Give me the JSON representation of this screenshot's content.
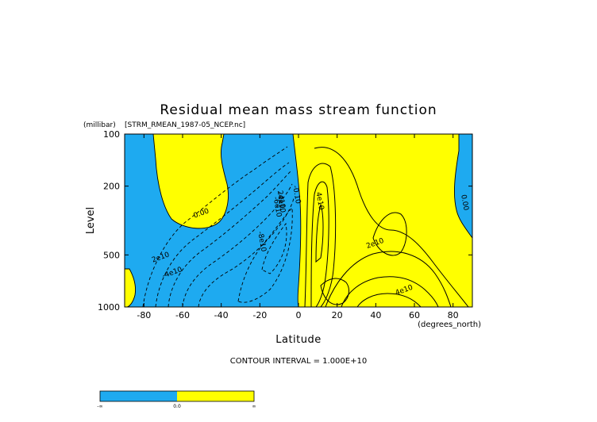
{
  "chart_data": {
    "type": "contour",
    "title": "Residual mean mass stream function",
    "source_file": "[STRM_RMEAN_1987-05_NCEP.nc]",
    "xlabel": "Latitude",
    "x_units": "(degrees_north)",
    "ylabel": "Level",
    "y_units": "(millibar)",
    "x_ticks": [
      -80,
      -60,
      -40,
      -20,
      0,
      20,
      40,
      60,
      80
    ],
    "x_tick_labels": [
      "-80",
      "-60",
      "-40",
      "-20",
      "0",
      "20",
      "40",
      "60",
      "80"
    ],
    "xlim": [
      -90,
      90
    ],
    "y_ticks": [
      100,
      200,
      500,
      1000
    ],
    "y_tick_labels": [
      "100",
      "200",
      "500",
      "1000"
    ],
    "ylim": [
      1000,
      100
    ],
    "y_scale": "log",
    "contour_interval_text": "CONTOUR INTERVAL = 1.000E+10",
    "contour_labels": [
      {
        "text": "0.00",
        "lat": -50,
        "p": 295
      },
      {
        "text": "2e10",
        "lat": -71,
        "p": 530
      },
      {
        "text": "-4e10",
        "lat": -65,
        "p": 650
      },
      {
        "text": "-6e10",
        "lat": -12,
        "p": 265
      },
      {
        "text": "2e10",
        "lat": -10,
        "p": 240
      },
      {
        "text": "-4e10",
        "lat": -10,
        "p": 250
      },
      {
        "text": "-8e10",
        "lat": -20,
        "p": 420
      },
      {
        "text": "-0.10",
        "lat": -2,
        "p": 225
      },
      {
        "text": "4e10",
        "lat": 10,
        "p": 245
      },
      {
        "text": "2e10",
        "lat": 40,
        "p": 440
      },
      {
        "text": "4e10",
        "lat": 55,
        "p": 820
      },
      {
        "text": "0.00",
        "lat": 85,
        "p": 250
      }
    ],
    "colorbar": {
      "labels": [
        "-∞",
        "0.0",
        "∞"
      ],
      "negative_color": "#1EAAF0",
      "positive_color": "#FFFF00"
    }
  }
}
